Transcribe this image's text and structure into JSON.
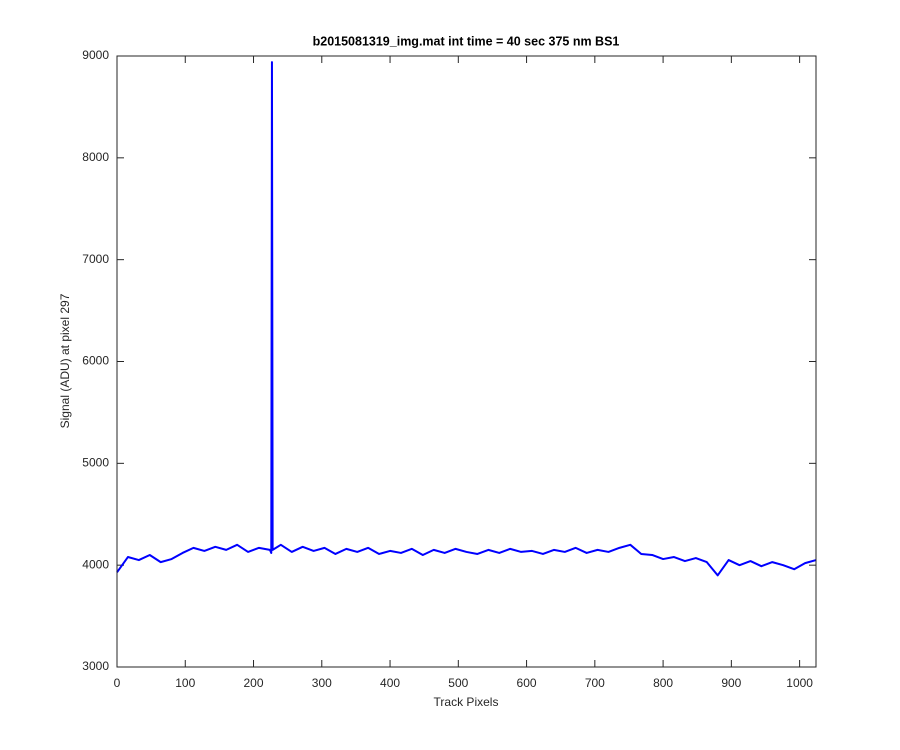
{
  "chart_data": {
    "type": "line",
    "title": "b2015081319_img.mat int time = 40 sec  375 nm BS1",
    "xlabel": "Track Pixels",
    "ylabel": "Signal (ADU) at pixel 297",
    "x": [
      0,
      16,
      32,
      48,
      64,
      80,
      96,
      112,
      128,
      144,
      160,
      176,
      192,
      208,
      224,
      226,
      227,
      228,
      240,
      256,
      272,
      288,
      304,
      320,
      336,
      352,
      368,
      384,
      400,
      416,
      432,
      448,
      464,
      480,
      496,
      512,
      528,
      544,
      560,
      576,
      592,
      608,
      624,
      640,
      656,
      672,
      688,
      704,
      720,
      736,
      752,
      768,
      784,
      800,
      816,
      832,
      848,
      864,
      880,
      896,
      912,
      928,
      944,
      960,
      976,
      992,
      1008,
      1024
    ],
    "series": [
      {
        "name": "signal",
        "color": "#0000ff",
        "values": [
          3930,
          4080,
          4050,
          4100,
          4030,
          4060,
          4120,
          4170,
          4140,
          4180,
          4150,
          4200,
          4130,
          4170,
          4150,
          4120,
          8940,
          4150,
          4200,
          4130,
          4180,
          4140,
          4170,
          4110,
          4160,
          4130,
          4170,
          4110,
          4140,
          4120,
          4160,
          4100,
          4150,
          4120,
          4160,
          4130,
          4110,
          4150,
          4120,
          4160,
          4130,
          4140,
          4110,
          4150,
          4130,
          4170,
          4120,
          4150,
          4130,
          4170,
          4200,
          4110,
          4100,
          4060,
          4080,
          4040,
          4070,
          4030,
          3900,
          4050,
          4000,
          4040,
          3990,
          4030,
          4000,
          3960,
          4020,
          4050
        ]
      }
    ],
    "xlim": [
      0,
      1024
    ],
    "xticks": [
      0,
      100,
      200,
      300,
      400,
      500,
      600,
      700,
      800,
      900,
      1000
    ],
    "ylim": [
      3000,
      9000
    ],
    "yticks": [
      3000,
      4000,
      5000,
      6000,
      7000,
      8000,
      9000
    ]
  }
}
